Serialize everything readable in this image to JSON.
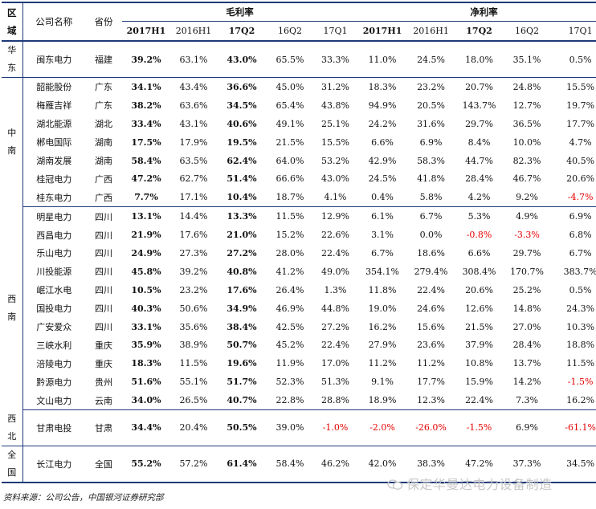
{
  "headers": {
    "region": "区域",
    "company": "公司名称",
    "province": "省份",
    "gross_margin": "毛利率",
    "net_margin": "净利率",
    "periods": [
      "2017H1",
      "2016H1",
      "17Q2",
      "16Q2",
      "17Q1"
    ]
  },
  "regions": [
    {
      "name": "华东",
      "rows": [
        {
          "company": "闽东电力",
          "province": "福建",
          "g": [
            "39.2%",
            "63.1%",
            "43.0%",
            "65.5%",
            "33.3%"
          ],
          "n": [
            "11.0%",
            "24.5%",
            "18.0%",
            "35.1%",
            "0.5%"
          ]
        }
      ]
    },
    {
      "name": "中南",
      "rows": [
        {
          "company": "韶能股份",
          "province": "广东",
          "g": [
            "34.1%",
            "43.4%",
            "36.6%",
            "45.0%",
            "31.2%"
          ],
          "n": [
            "18.3%",
            "23.2%",
            "20.7%",
            "24.8%",
            "15.5%"
          ]
        },
        {
          "company": "梅雁吉祥",
          "province": "广东",
          "g": [
            "38.2%",
            "63.6%",
            "34.5%",
            "65.4%",
            "43.8%"
          ],
          "n": [
            "94.9%",
            "20.5%",
            "143.7%",
            "12.7%",
            "19.7%"
          ]
        },
        {
          "company": "湖北能源",
          "province": "湖北",
          "g": [
            "33.4%",
            "43.1%",
            "40.6%",
            "49.1%",
            "25.1%"
          ],
          "n": [
            "24.2%",
            "31.6%",
            "29.7%",
            "36.5%",
            "17.7%"
          ]
        },
        {
          "company": "郴电国际",
          "province": "湖南",
          "g": [
            "17.5%",
            "17.9%",
            "19.5%",
            "21.5%",
            "15.5%"
          ],
          "n": [
            "6.6%",
            "6.9%",
            "8.4%",
            "10.0%",
            "4.7%"
          ]
        },
        {
          "company": "湖南发展",
          "province": "湖南",
          "g": [
            "58.4%",
            "63.5%",
            "62.4%",
            "64.0%",
            "53.2%"
          ],
          "n": [
            "42.9%",
            "58.3%",
            "44.7%",
            "82.3%",
            "40.5%"
          ]
        },
        {
          "company": "桂冠电力",
          "province": "广西",
          "g": [
            "47.2%",
            "62.7%",
            "51.4%",
            "66.6%",
            "43.0%"
          ],
          "n": [
            "24.5%",
            "41.8%",
            "28.4%",
            "46.7%",
            "20.6%"
          ]
        },
        {
          "company": "桂东电力",
          "province": "广西",
          "g": [
            "7.7%",
            "17.1%",
            "10.4%",
            "18.7%",
            "4.1%"
          ],
          "n": [
            "0.4%",
            "5.8%",
            "4.2%",
            "9.2%",
            "-4.7%"
          ]
        }
      ]
    },
    {
      "name": "西南",
      "rows": [
        {
          "company": "明星电力",
          "province": "四川",
          "g": [
            "13.1%",
            "14.4%",
            "13.3%",
            "11.5%",
            "12.9%"
          ],
          "n": [
            "6.1%",
            "6.7%",
            "5.3%",
            "4.9%",
            "6.9%"
          ]
        },
        {
          "company": "西昌电力",
          "province": "四川",
          "g": [
            "21.9%",
            "17.6%",
            "21.0%",
            "15.2%",
            "22.6%"
          ],
          "n": [
            "3.1%",
            "0.0%",
            "-0.8%",
            "-3.3%",
            "6.8%"
          ]
        },
        {
          "company": "乐山电力",
          "province": "四川",
          "g": [
            "24.9%",
            "27.3%",
            "27.2%",
            "28.0%",
            "22.4%"
          ],
          "n": [
            "6.7%",
            "18.6%",
            "6.6%",
            "29.7%",
            "6.7%"
          ]
        },
        {
          "company": "川投能源",
          "province": "四川",
          "g": [
            "45.8%",
            "39.2%",
            "40.8%",
            "41.2%",
            "49.0%"
          ],
          "n": [
            "354.1%",
            "279.4%",
            "308.4%",
            "170.7%",
            "383.7%"
          ]
        },
        {
          "company": "岷江水电",
          "province": "四川",
          "g": [
            "10.5%",
            "23.2%",
            "17.6%",
            "26.4%",
            "1.3%"
          ],
          "n": [
            "11.8%",
            "22.4%",
            "20.6%",
            "25.2%",
            "0.5%"
          ]
        },
        {
          "company": "国投电力",
          "province": "四川",
          "g": [
            "40.3%",
            "50.6%",
            "34.9%",
            "46.9%",
            "44.8%"
          ],
          "n": [
            "19.0%",
            "24.6%",
            "12.6%",
            "14.8%",
            "24.3%"
          ]
        },
        {
          "company": "广安爱众",
          "province": "四川",
          "g": [
            "33.1%",
            "35.6%",
            "38.4%",
            "42.5%",
            "27.2%"
          ],
          "n": [
            "16.2%",
            "15.6%",
            "21.5%",
            "27.0%",
            "10.3%"
          ]
        },
        {
          "company": "三峡水利",
          "province": "重庆",
          "g": [
            "35.9%",
            "38.9%",
            "50.7%",
            "45.2%",
            "22.4%"
          ],
          "n": [
            "27.9%",
            "23.6%",
            "37.9%",
            "28.4%",
            "18.8%"
          ]
        },
        {
          "company": "涪陵电力",
          "province": "重庆",
          "g": [
            "18.3%",
            "11.5%",
            "19.6%",
            "11.9%",
            "17.0%"
          ],
          "n": [
            "11.2%",
            "11.2%",
            "10.8%",
            "13.7%",
            "11.5%"
          ]
        },
        {
          "company": "黔源电力",
          "province": "贵州",
          "g": [
            "51.6%",
            "55.1%",
            "51.7%",
            "52.3%",
            "51.3%"
          ],
          "n": [
            "9.1%",
            "17.7%",
            "15.9%",
            "14.2%",
            "-1.5%"
          ]
        },
        {
          "company": "文山电力",
          "province": "云南",
          "g": [
            "34.0%",
            "26.5%",
            "40.7%",
            "22.8%",
            "28.8%"
          ],
          "n": [
            "18.9%",
            "12.3%",
            "22.4%",
            "7.3%",
            "16.2%"
          ]
        }
      ]
    },
    {
      "name": "西北",
      "rows": [
        {
          "company": "甘肃电投",
          "province": "甘肃",
          "g": [
            "34.4%",
            "20.4%",
            "50.5%",
            "39.0%",
            "-1.0%"
          ],
          "n": [
            "-2.0%",
            "-26.0%",
            "-1.5%",
            "6.9%",
            "-61.1%"
          ]
        }
      ]
    },
    {
      "name": "全国",
      "rows": [
        {
          "company": "长江电力",
          "province": "全国",
          "g": [
            "55.2%",
            "57.2%",
            "61.4%",
            "58.4%",
            "46.2%"
          ],
          "n": [
            "42.0%",
            "38.3%",
            "47.2%",
            "37.3%",
            "34.5%"
          ]
        }
      ]
    }
  ],
  "source": "资料来源：公司公告，中国银河证券研究部",
  "watermark": "保定华曼达电力设备制造",
  "colors": {
    "rule": "#1f3a7a",
    "negative": "#e60000"
  }
}
